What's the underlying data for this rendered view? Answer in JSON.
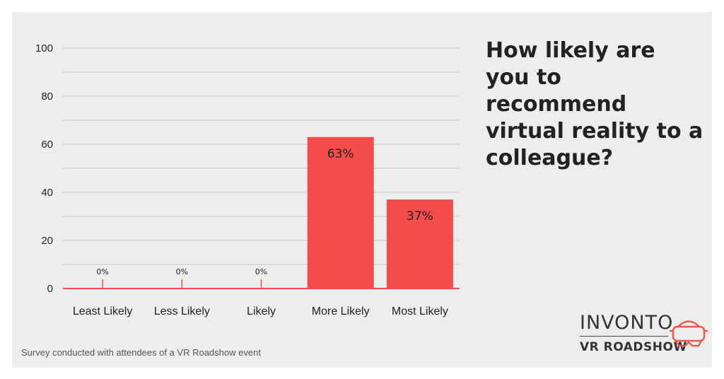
{
  "chart_data": {
    "type": "bar",
    "title": "How likely are\nyou to recommend\nvirtual reality to a\ncolleague?",
    "categories": [
      "Least Likely",
      "Less Likely",
      "Likely",
      "More Likely",
      "Most Likely"
    ],
    "values": [
      0,
      0,
      0,
      63,
      37
    ],
    "data_labels": [
      "0%",
      "0%",
      "0%",
      "63%",
      "37%"
    ],
    "ylim": [
      0,
      100
    ],
    "yticks": [
      "0",
      "20",
      "40",
      "60",
      "80",
      "100"
    ],
    "xlabel": "",
    "ylabel": "",
    "grid": true,
    "bar_color": "#f44b4b"
  },
  "footnote": "Survey conducted with attendees of a VR Roadshow event",
  "logo": {
    "line1": "INVONTO",
    "line2": "VR ROADSHOW",
    "icon": "vr-headset-icon",
    "accent": "#e8584f"
  }
}
